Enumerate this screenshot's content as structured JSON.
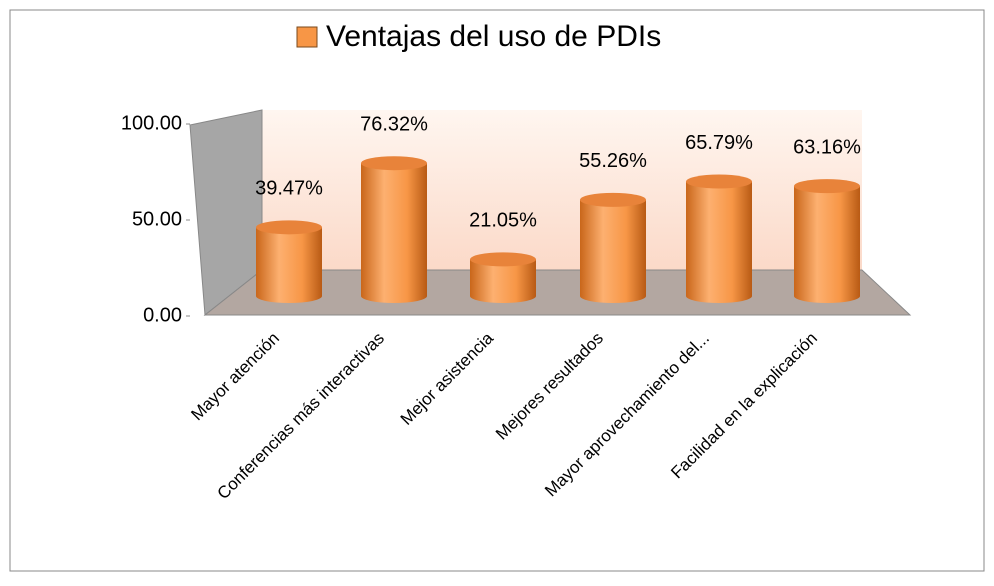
{
  "chart_data": {
    "type": "bar3d",
    "categories": [
      "Mayor atención",
      "Conferencias más interactivas",
      "Mejor asistencia",
      "Mejores resultados",
      "Mayor aprovechamiento del...",
      "Facilidad en la explicación"
    ],
    "series": [
      {
        "name": "Ventajas del uso de PDIs",
        "color": "#f79646",
        "values": [
          39.47,
          76.32,
          21.05,
          55.26,
          65.79,
          63.16
        ],
        "value_labels": [
          "39.47%",
          "76.32%",
          "21.05%",
          "55.26%",
          "65.79%",
          "63.16%"
        ]
      }
    ],
    "ylim": [
      0,
      100
    ],
    "yticks": [
      {
        "value": 0,
        "label": "0.00"
      },
      {
        "value": 50,
        "label": "50.00"
      },
      {
        "value": 100,
        "label": "100.00"
      }
    ],
    "legend": "top"
  }
}
